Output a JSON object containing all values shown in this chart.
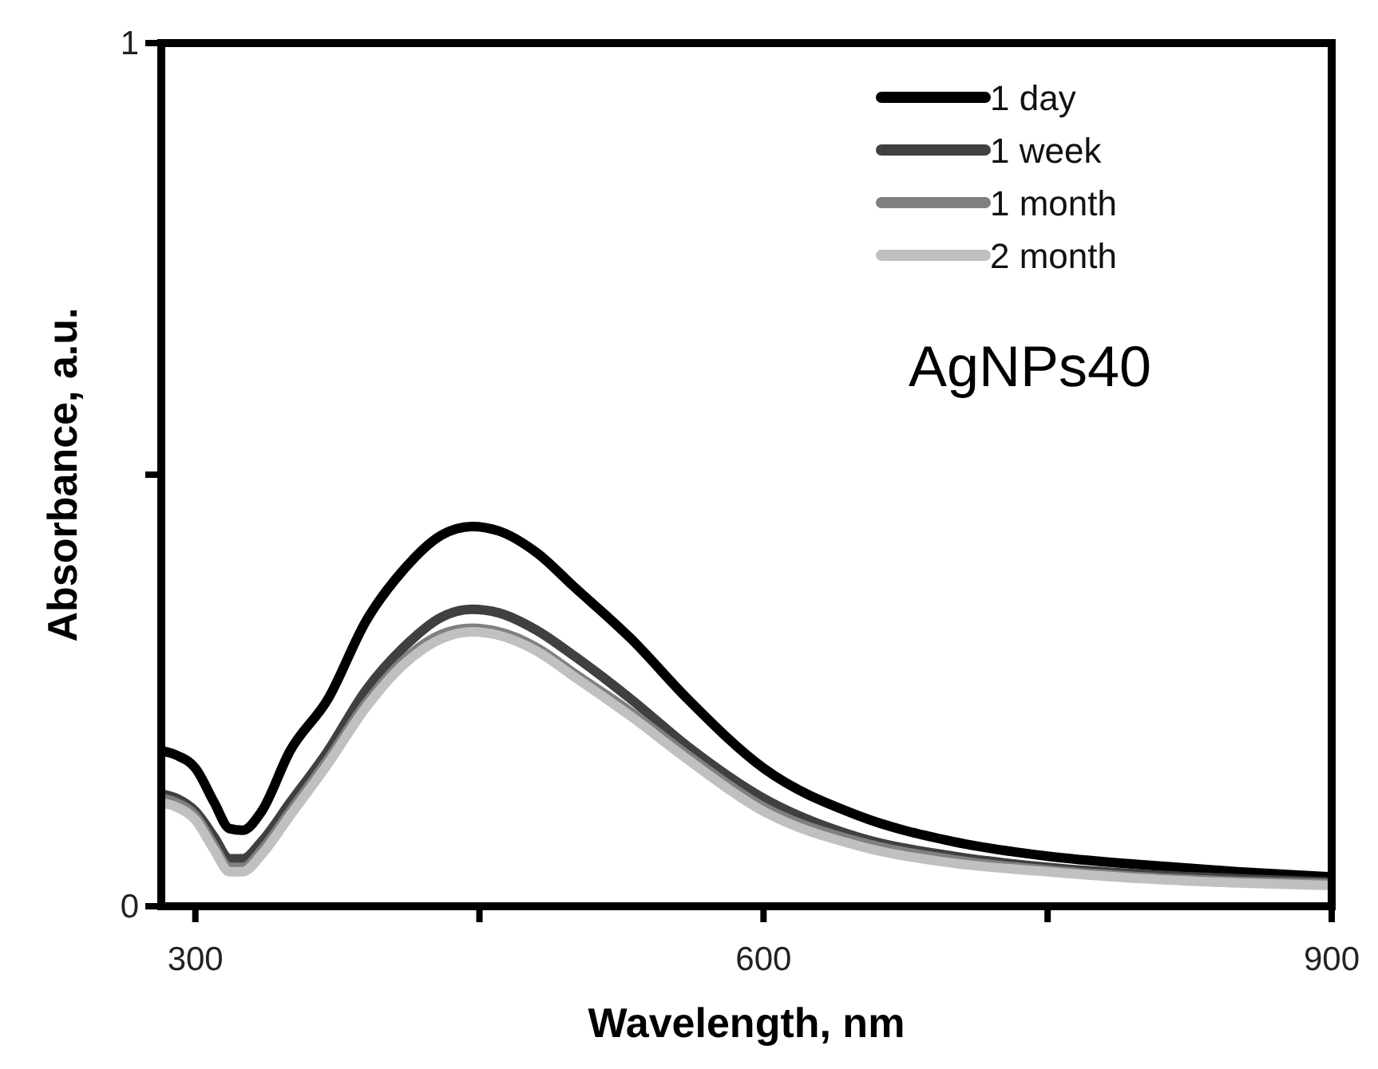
{
  "chart_data": {
    "type": "line",
    "xlabel": "Wavelength, nm",
    "ylabel": "Absorbance, a.u.",
    "annotations": [
      "AgNPs40"
    ],
    "x": [
      282,
      290,
      300,
      310,
      318,
      325,
      335,
      350,
      370,
      390,
      410,
      430,
      446,
      460,
      480,
      500,
      530,
      560,
      600,
      650,
      700,
      750,
      800,
      850,
      900
    ],
    "series": [
      {
        "name": "1 day",
        "color": "#000000",
        "values": [
          0.18,
          0.175,
          0.16,
          0.12,
          0.09,
          0.088,
          0.11,
          0.18,
          0.24,
          0.33,
          0.39,
          0.43,
          0.44,
          0.435,
          0.41,
          0.37,
          0.31,
          0.24,
          0.16,
          0.105,
          0.075,
          0.058,
          0.048,
          0.04,
          0.034
        ]
      },
      {
        "name": "1 week",
        "color": "#404040",
        "values": [
          0.13,
          0.125,
          0.11,
          0.08,
          0.055,
          0.055,
          0.075,
          0.12,
          0.18,
          0.25,
          0.3,
          0.335,
          0.344,
          0.34,
          0.32,
          0.29,
          0.24,
          0.185,
          0.125,
          0.08,
          0.058,
          0.045,
          0.037,
          0.032,
          0.028
        ]
      },
      {
        "name": "1 month",
        "color": "#808080",
        "values": [
          0.125,
          0.12,
          0.105,
          0.07,
          0.045,
          0.045,
          0.065,
          0.11,
          0.17,
          0.235,
          0.285,
          0.315,
          0.322,
          0.318,
          0.3,
          0.27,
          0.225,
          0.175,
          0.115,
          0.075,
          0.054,
          0.042,
          0.034,
          0.029,
          0.026
        ]
      },
      {
        "name": "2 month",
        "color": "#c0c0c0",
        "values": [
          0.12,
          0.115,
          0.1,
          0.065,
          0.04,
          0.04,
          0.06,
          0.105,
          0.165,
          0.23,
          0.28,
          0.31,
          0.318,
          0.314,
          0.296,
          0.266,
          0.22,
          0.17,
          0.11,
          0.07,
          0.05,
          0.04,
          0.032,
          0.027,
          0.024
        ]
      }
    ],
    "xlim": [
      282,
      900
    ],
    "xticks": [
      300,
      {
        "value": 450,
        "label": null
      },
      600,
      {
        "value": 750,
        "label": null
      },
      900
    ],
    "ylim": [
      0,
      1
    ],
    "yticks": [
      0,
      {
        "value": 0.5,
        "label": null
      },
      1
    ],
    "legend": "top right",
    "grid": false,
    "marker": "none",
    "line_style": "solid"
  }
}
